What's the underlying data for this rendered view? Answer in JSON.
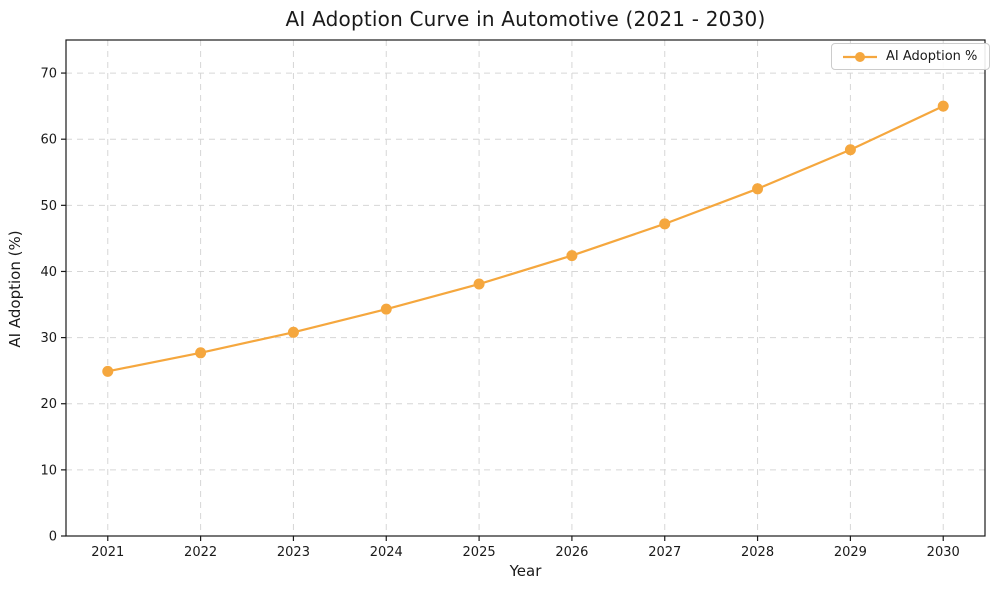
{
  "figure": {
    "title": "AI Adoption Curve in Automotive (2021 - 2030)",
    "xlabel": "Year",
    "ylabel": "AI Adoption (%)",
    "legend": {
      "label": "AI Adoption %"
    }
  },
  "colors": {
    "line": "#F5A73E",
    "marker": "#F5A73E",
    "grid": "#D6D6D6",
    "spine": "#1A1A1A",
    "tick": "#1A1A1A",
    "text": "#1A1A1A",
    "legend_border": "#CCCCCC",
    "background": "#FFFFFF"
  },
  "chart_data": {
    "type": "line",
    "title": "AI Adoption Curve in Automotive (2021 - 2030)",
    "xlabel": "Year",
    "ylabel": "AI Adoption (%)",
    "categories": [
      "2021",
      "2022",
      "2023",
      "2024",
      "2025",
      "2026",
      "2027",
      "2028",
      "2029",
      "2030"
    ],
    "series": [
      {
        "name": "AI Adoption %",
        "values": [
          24.9,
          27.7,
          30.8,
          34.3,
          38.1,
          42.4,
          47.2,
          52.5,
          58.4,
          65.0
        ]
      }
    ],
    "ylim": [
      0,
      75
    ],
    "yticks": [
      0,
      10,
      20,
      30,
      40,
      50,
      60,
      70
    ],
    "grid": true,
    "grid_style": "dashed",
    "legend_position": "upper right",
    "marker": "o",
    "marker_size": 5.5,
    "line_width": 2.2
  }
}
